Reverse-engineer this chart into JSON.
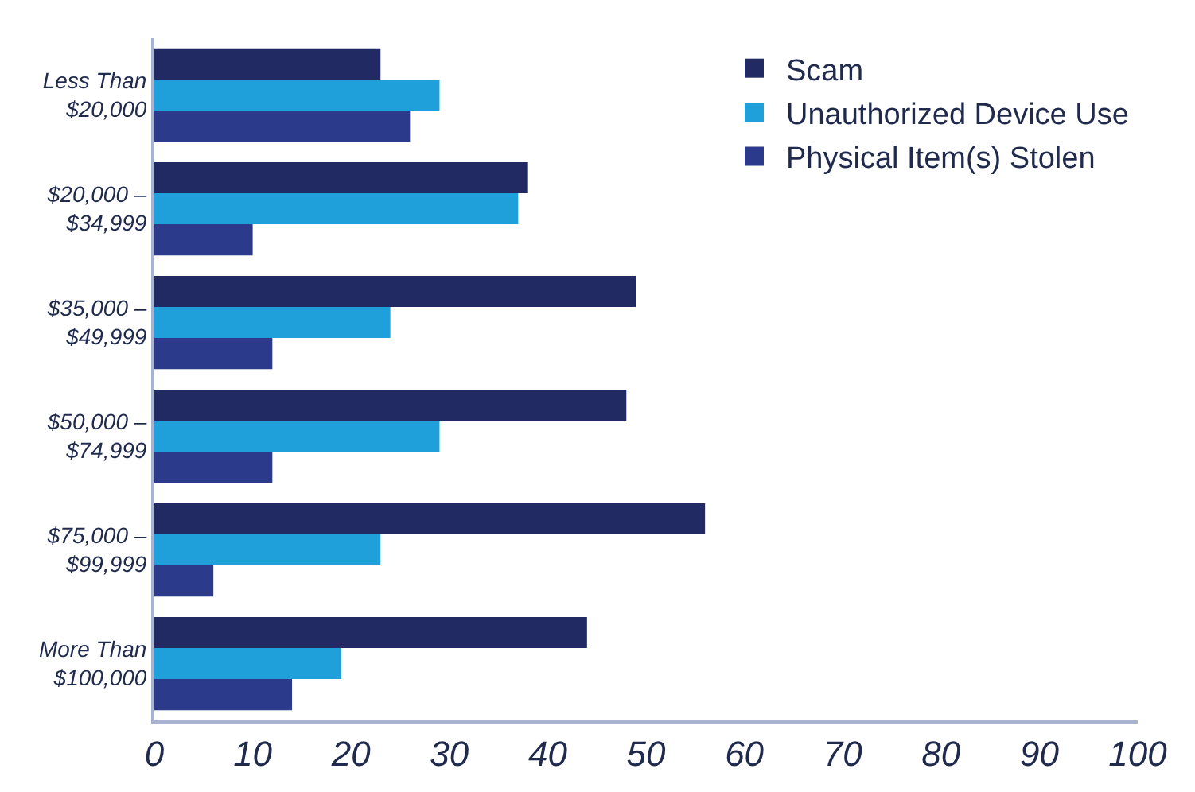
{
  "chart_data": {
    "type": "bar",
    "orientation": "horizontal",
    "categories": [
      "Less Than\n$20,000",
      "$20,000 –\n$34,999",
      "$35,000 –\n$49,999",
      "$50,000 –\n$74,999",
      "$75,000 –\n$99,999",
      "More Than\n$100,000"
    ],
    "series": [
      {
        "name": "Scam",
        "color": "#222a63",
        "values": [
          23,
          38,
          49,
          48,
          56,
          44
        ]
      },
      {
        "name": "Unauthorized Device Use",
        "color": "#1fa0db",
        "values": [
          29,
          37,
          24,
          29,
          23,
          19
        ]
      },
      {
        "name": "Physical Item(s) Stolen",
        "color": "#2b3a8a",
        "values": [
          26,
          10,
          12,
          12,
          6,
          14
        ]
      }
    ],
    "xlim": [
      0,
      100
    ],
    "xticks": [
      0,
      10,
      20,
      30,
      40,
      50,
      60,
      70,
      80,
      90,
      100
    ],
    "legend": "top right"
  }
}
